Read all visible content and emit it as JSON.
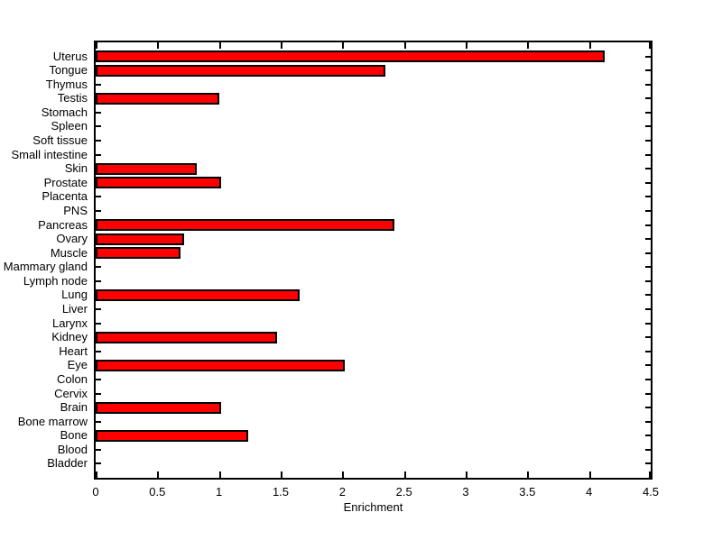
{
  "chart_data": {
    "type": "bar",
    "orientation": "horizontal",
    "title": "",
    "xlabel": "Enrichment",
    "ylabel": "",
    "xlim": [
      0,
      4.5
    ],
    "xtick_labels": [
      "0",
      "0.5",
      "1",
      "1.5",
      "2",
      "2.5",
      "3",
      "3.5",
      "4",
      "4.5"
    ],
    "categories": [
      "Uterus",
      "Tongue",
      "Thymus",
      "Testis",
      "Stomach",
      "Spleen",
      "Soft tissue",
      "Small intestine",
      "Skin",
      "Prostate",
      "Placenta",
      "PNS",
      "Pancreas",
      "Ovary",
      "Muscle",
      "Mammary gland",
      "Lymph node",
      "Lung",
      "Liver",
      "Larynx",
      "Kidney",
      "Heart",
      "Eye",
      "Colon",
      "Cervix",
      "Brain",
      "Bone marrow",
      "Bone",
      "Blood",
      "Bladder"
    ],
    "categories_order": "top-to-bottom",
    "values": [
      4.13,
      2.35,
      0,
      1.0,
      0,
      0,
      0,
      0,
      0.82,
      1.02,
      0,
      0,
      2.42,
      0.72,
      0.69,
      0,
      0,
      1.65,
      0,
      0,
      1.47,
      0,
      2.02,
      0,
      0,
      1.02,
      0,
      1.24,
      0,
      0
    ],
    "bar_color": "#ff0000",
    "bar_edge_color": "#000000",
    "axis_color": "#000000",
    "background_color": "#ffffff",
    "grid": false,
    "legend": null
  }
}
